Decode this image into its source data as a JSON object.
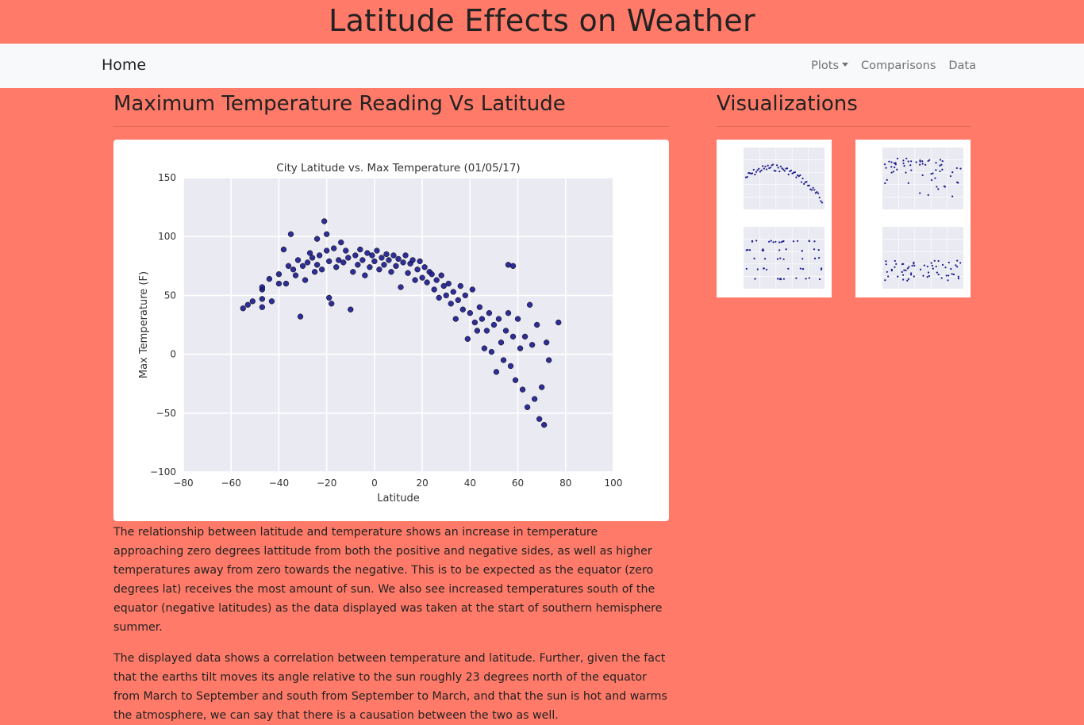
{
  "page": {
    "banner_title": "Latitude Effects on Weather"
  },
  "nav": {
    "brand": "Home",
    "links": [
      "Plots",
      "Comparisons",
      "Data"
    ]
  },
  "main": {
    "title": "Maximum Temperature Reading Vs Latitude",
    "paragraphs": [
      "The relationship between latitude and temperature shows an increase in temperature approaching zero degrees lattitude from both the positive and negative sides, as well as higher temperatures away from zero towards the negative. This is to be expected as the equator (zero degrees lat) receives the most amount of sun. We also see increased temperatures south of the equator (negative latitudes) as the data displayed was taken at the start of southern hemisphere summer.",
      "The displayed data shows a correlation between temperature and latitude. Further, given the fact that the earths tilt moves its angle relative to the sun roughly 23 degrees north of the equator from March to September and south from September to March, and that the sun is hot and warms the atmosphere, we can say that there is a causation between the two as well."
    ]
  },
  "sidebar": {
    "title": "Visualizations"
  },
  "colors": {
    "page_bg": "#ff7a68",
    "navbar_bg": "#f8f9fa",
    "plot_bg": "#eaeaf2",
    "marker": "#1a1a8c"
  },
  "chart_data": {
    "type": "scatter",
    "title": "City Latitude vs. Max Temperature (01/05/17)",
    "xlabel": "Latitude",
    "ylabel": "Max Temperature (F)",
    "xlim": [
      -80,
      100
    ],
    "ylim": [
      -100,
      150
    ],
    "xticks": [
      -80,
      -60,
      -40,
      -20,
      0,
      20,
      40,
      60,
      80,
      100
    ],
    "yticks": [
      -100,
      -50,
      0,
      50,
      100,
      150
    ],
    "grid": true,
    "points": [
      [
        -55,
        39
      ],
      [
        -53,
        42
      ],
      [
        -51,
        45
      ],
      [
        -47,
        55
      ],
      [
        -47,
        57
      ],
      [
        -47,
        47
      ],
      [
        -47,
        40
      ],
      [
        -44,
        64
      ],
      [
        -43,
        45
      ],
      [
        -40,
        60
      ],
      [
        -40,
        68
      ],
      [
        -38,
        89
      ],
      [
        -37,
        60
      ],
      [
        -36,
        75
      ],
      [
        -35,
        102
      ],
      [
        -34,
        72
      ],
      [
        -33,
        67
      ],
      [
        -32,
        80
      ],
      [
        -31,
        32
      ],
      [
        -30,
        75
      ],
      [
        -29,
        63
      ],
      [
        -28,
        78
      ],
      [
        -27,
        86
      ],
      [
        -26,
        82
      ],
      [
        -25,
        70
      ],
      [
        -24,
        98
      ],
      [
        -24,
        76
      ],
      [
        -23,
        84
      ],
      [
        -22,
        72
      ],
      [
        -21,
        113
      ],
      [
        -20,
        102
      ],
      [
        -20,
        88
      ],
      [
        -19,
        79
      ],
      [
        -19,
        48
      ],
      [
        -18,
        43
      ],
      [
        -17,
        90
      ],
      [
        -16,
        74
      ],
      [
        -15,
        80
      ],
      [
        -14,
        95
      ],
      [
        -13,
        78
      ],
      [
        -12,
        88
      ],
      [
        -11,
        82
      ],
      [
        -10,
        38
      ],
      [
        -9,
        70
      ],
      [
        -8,
        84
      ],
      [
        -7,
        76
      ],
      [
        -6,
        89
      ],
      [
        -5,
        80
      ],
      [
        -4,
        67
      ],
      [
        -3,
        86
      ],
      [
        -2,
        74
      ],
      [
        -1,
        84
      ],
      [
        0,
        79
      ],
      [
        1,
        88
      ],
      [
        2,
        72
      ],
      [
        3,
        82
      ],
      [
        4,
        76
      ],
      [
        5,
        85
      ],
      [
        6,
        80
      ],
      [
        7,
        70
      ],
      [
        8,
        84
      ],
      [
        9,
        75
      ],
      [
        10,
        81
      ],
      [
        11,
        57
      ],
      [
        12,
        78
      ],
      [
        13,
        84
      ],
      [
        14,
        69
      ],
      [
        15,
        77
      ],
      [
        16,
        80
      ],
      [
        17,
        63
      ],
      [
        18,
        72
      ],
      [
        19,
        79
      ],
      [
        20,
        65
      ],
      [
        21,
        74
      ],
      [
        22,
        61
      ],
      [
        23,
        70
      ],
      [
        24,
        68
      ],
      [
        25,
        55
      ],
      [
        26,
        63
      ],
      [
        27,
        48
      ],
      [
        28,
        67
      ],
      [
        29,
        58
      ],
      [
        30,
        50
      ],
      [
        31,
        60
      ],
      [
        32,
        43
      ],
      [
        33,
        53
      ],
      [
        34,
        30
      ],
      [
        35,
        46
      ],
      [
        36,
        58
      ],
      [
        37,
        38
      ],
      [
        38,
        50
      ],
      [
        39,
        13
      ],
      [
        40,
        35
      ],
      [
        41,
        55
      ],
      [
        42,
        27
      ],
      [
        43,
        20
      ],
      [
        44,
        40
      ],
      [
        45,
        30
      ],
      [
        46,
        5
      ],
      [
        47,
        20
      ],
      [
        48,
        35
      ],
      [
        49,
        2
      ],
      [
        50,
        25
      ],
      [
        51,
        -15
      ],
      [
        52,
        30
      ],
      [
        53,
        10
      ],
      [
        54,
        -5
      ],
      [
        55,
        20
      ],
      [
        56,
        35
      ],
      [
        57,
        -10
      ],
      [
        58,
        15
      ],
      [
        59,
        -22
      ],
      [
        60,
        30
      ],
      [
        61,
        5
      ],
      [
        62,
        -30
      ],
      [
        63,
        15
      ],
      [
        64,
        -45
      ],
      [
        65,
        42
      ],
      [
        66,
        8
      ],
      [
        67,
        -38
      ],
      [
        68,
        25
      ],
      [
        69,
        -55
      ],
      [
        70,
        -28
      ],
      [
        71,
        -60
      ],
      [
        72,
        10
      ],
      [
        73,
        -5
      ],
      [
        77,
        27
      ],
      [
        56,
        76
      ],
      [
        58,
        75
      ]
    ]
  }
}
